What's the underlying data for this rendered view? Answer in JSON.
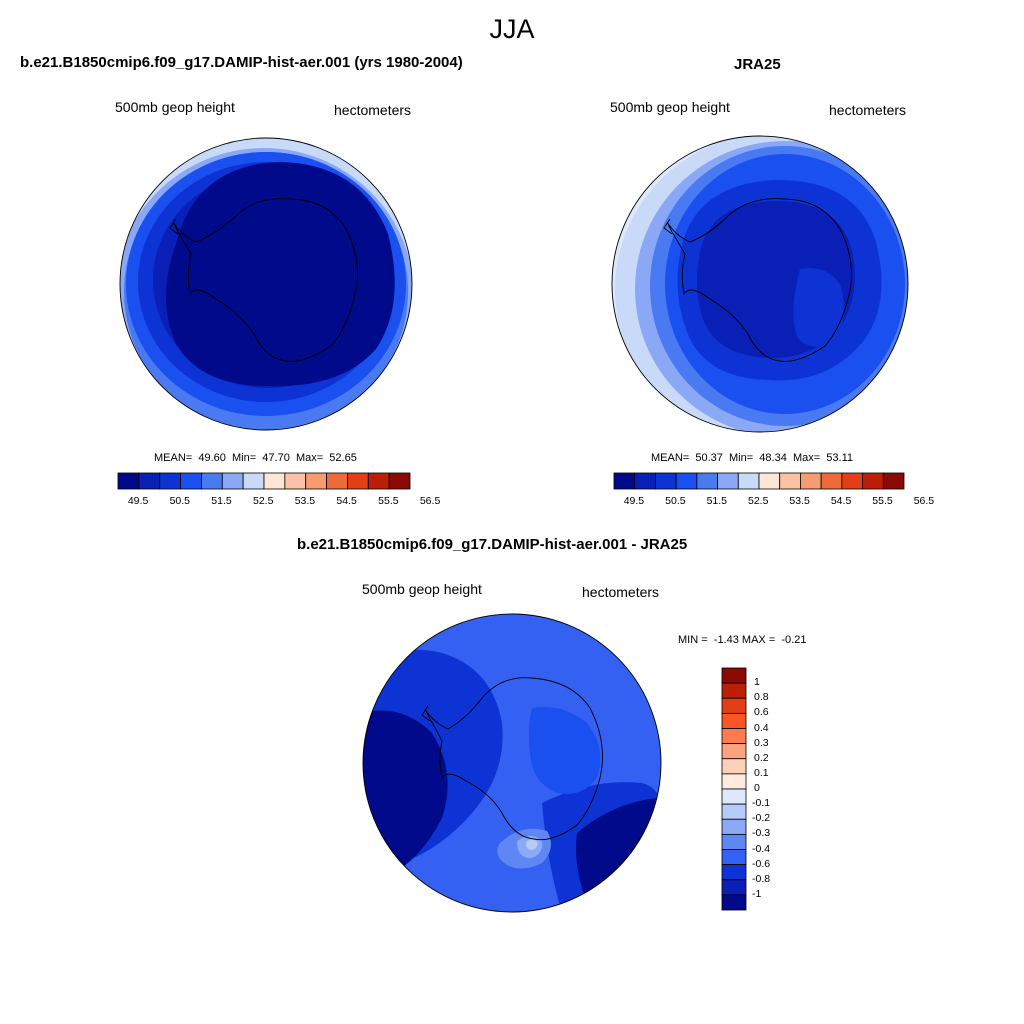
{
  "page": {
    "title": "JJA"
  },
  "panels": [
    {
      "id": "model",
      "title": "b.e21.B1850cmip6.f09_g17.DAMIP-hist-aer.001 (yrs 1980-2004)",
      "variable": "500mb geop height",
      "units": "hectometers",
      "stats": {
        "mean_label": "MEAN=",
        "mean": "49.60",
        "min_label": "Min=",
        "min": "47.70",
        "max_label": "Max=",
        "max": "52.65"
      },
      "colorbar_labels": [
        "49.5",
        "50.5",
        "51.5",
        "52.5",
        "53.5",
        "54.5",
        "55.5",
        "56.5"
      ]
    },
    {
      "id": "obs",
      "title": "JRA25",
      "variable": "500mb geop height",
      "units": "hectometers",
      "stats": {
        "mean_label": "MEAN=",
        "mean": "50.37",
        "min_label": "Min=",
        "min": "48.34",
        "max_label": "Max=",
        "max": "53.11"
      },
      "colorbar_labels": [
        "49.5",
        "50.5",
        "51.5",
        "52.5",
        "53.5",
        "54.5",
        "55.5",
        "56.5"
      ]
    },
    {
      "id": "diff",
      "title": "b.e21.B1850cmip6.f09_g17.DAMIP-hist-aer.001 - JRA25",
      "variable": "500mb geop height",
      "units": "hectometers",
      "stats": {
        "min_label": "MIN =",
        "min": "-1.43",
        "max_label": "MAX =",
        "max": "-0.21"
      },
      "colorbar_labels": [
        "1",
        "0.8",
        "0.6",
        "0.4",
        "0.3",
        "0.2",
        "0.1",
        "0",
        "-0.1",
        "-0.2",
        "-0.3",
        "-0.4",
        "-0.6",
        "-0.8",
        "-1"
      ]
    }
  ],
  "colors": {
    "abs_scale": [
      "#000a8a",
      "#0a1fb5",
      "#0d33d4",
      "#1a4ff0",
      "#4a7af2",
      "#8aa8f5",
      "#c8daf8",
      "#fde6d6",
      "#fbc2a6",
      "#f69b72",
      "#ef6a3b",
      "#e23f16",
      "#bd1e08",
      "#8b0a05"
    ],
    "diff_scale": [
      "#8b0a05",
      "#bd1e08",
      "#e23f16",
      "#fa5522",
      "#fb7d4d",
      "#fba27e",
      "#fdd0b8",
      "#ffebe0",
      "#dce8fb",
      "#b5cbf8",
      "#8aaaf6",
      "#5f87f4",
      "#3461f2",
      "#0d33d4",
      "#0a1fb5",
      "#000a8a"
    ]
  }
}
